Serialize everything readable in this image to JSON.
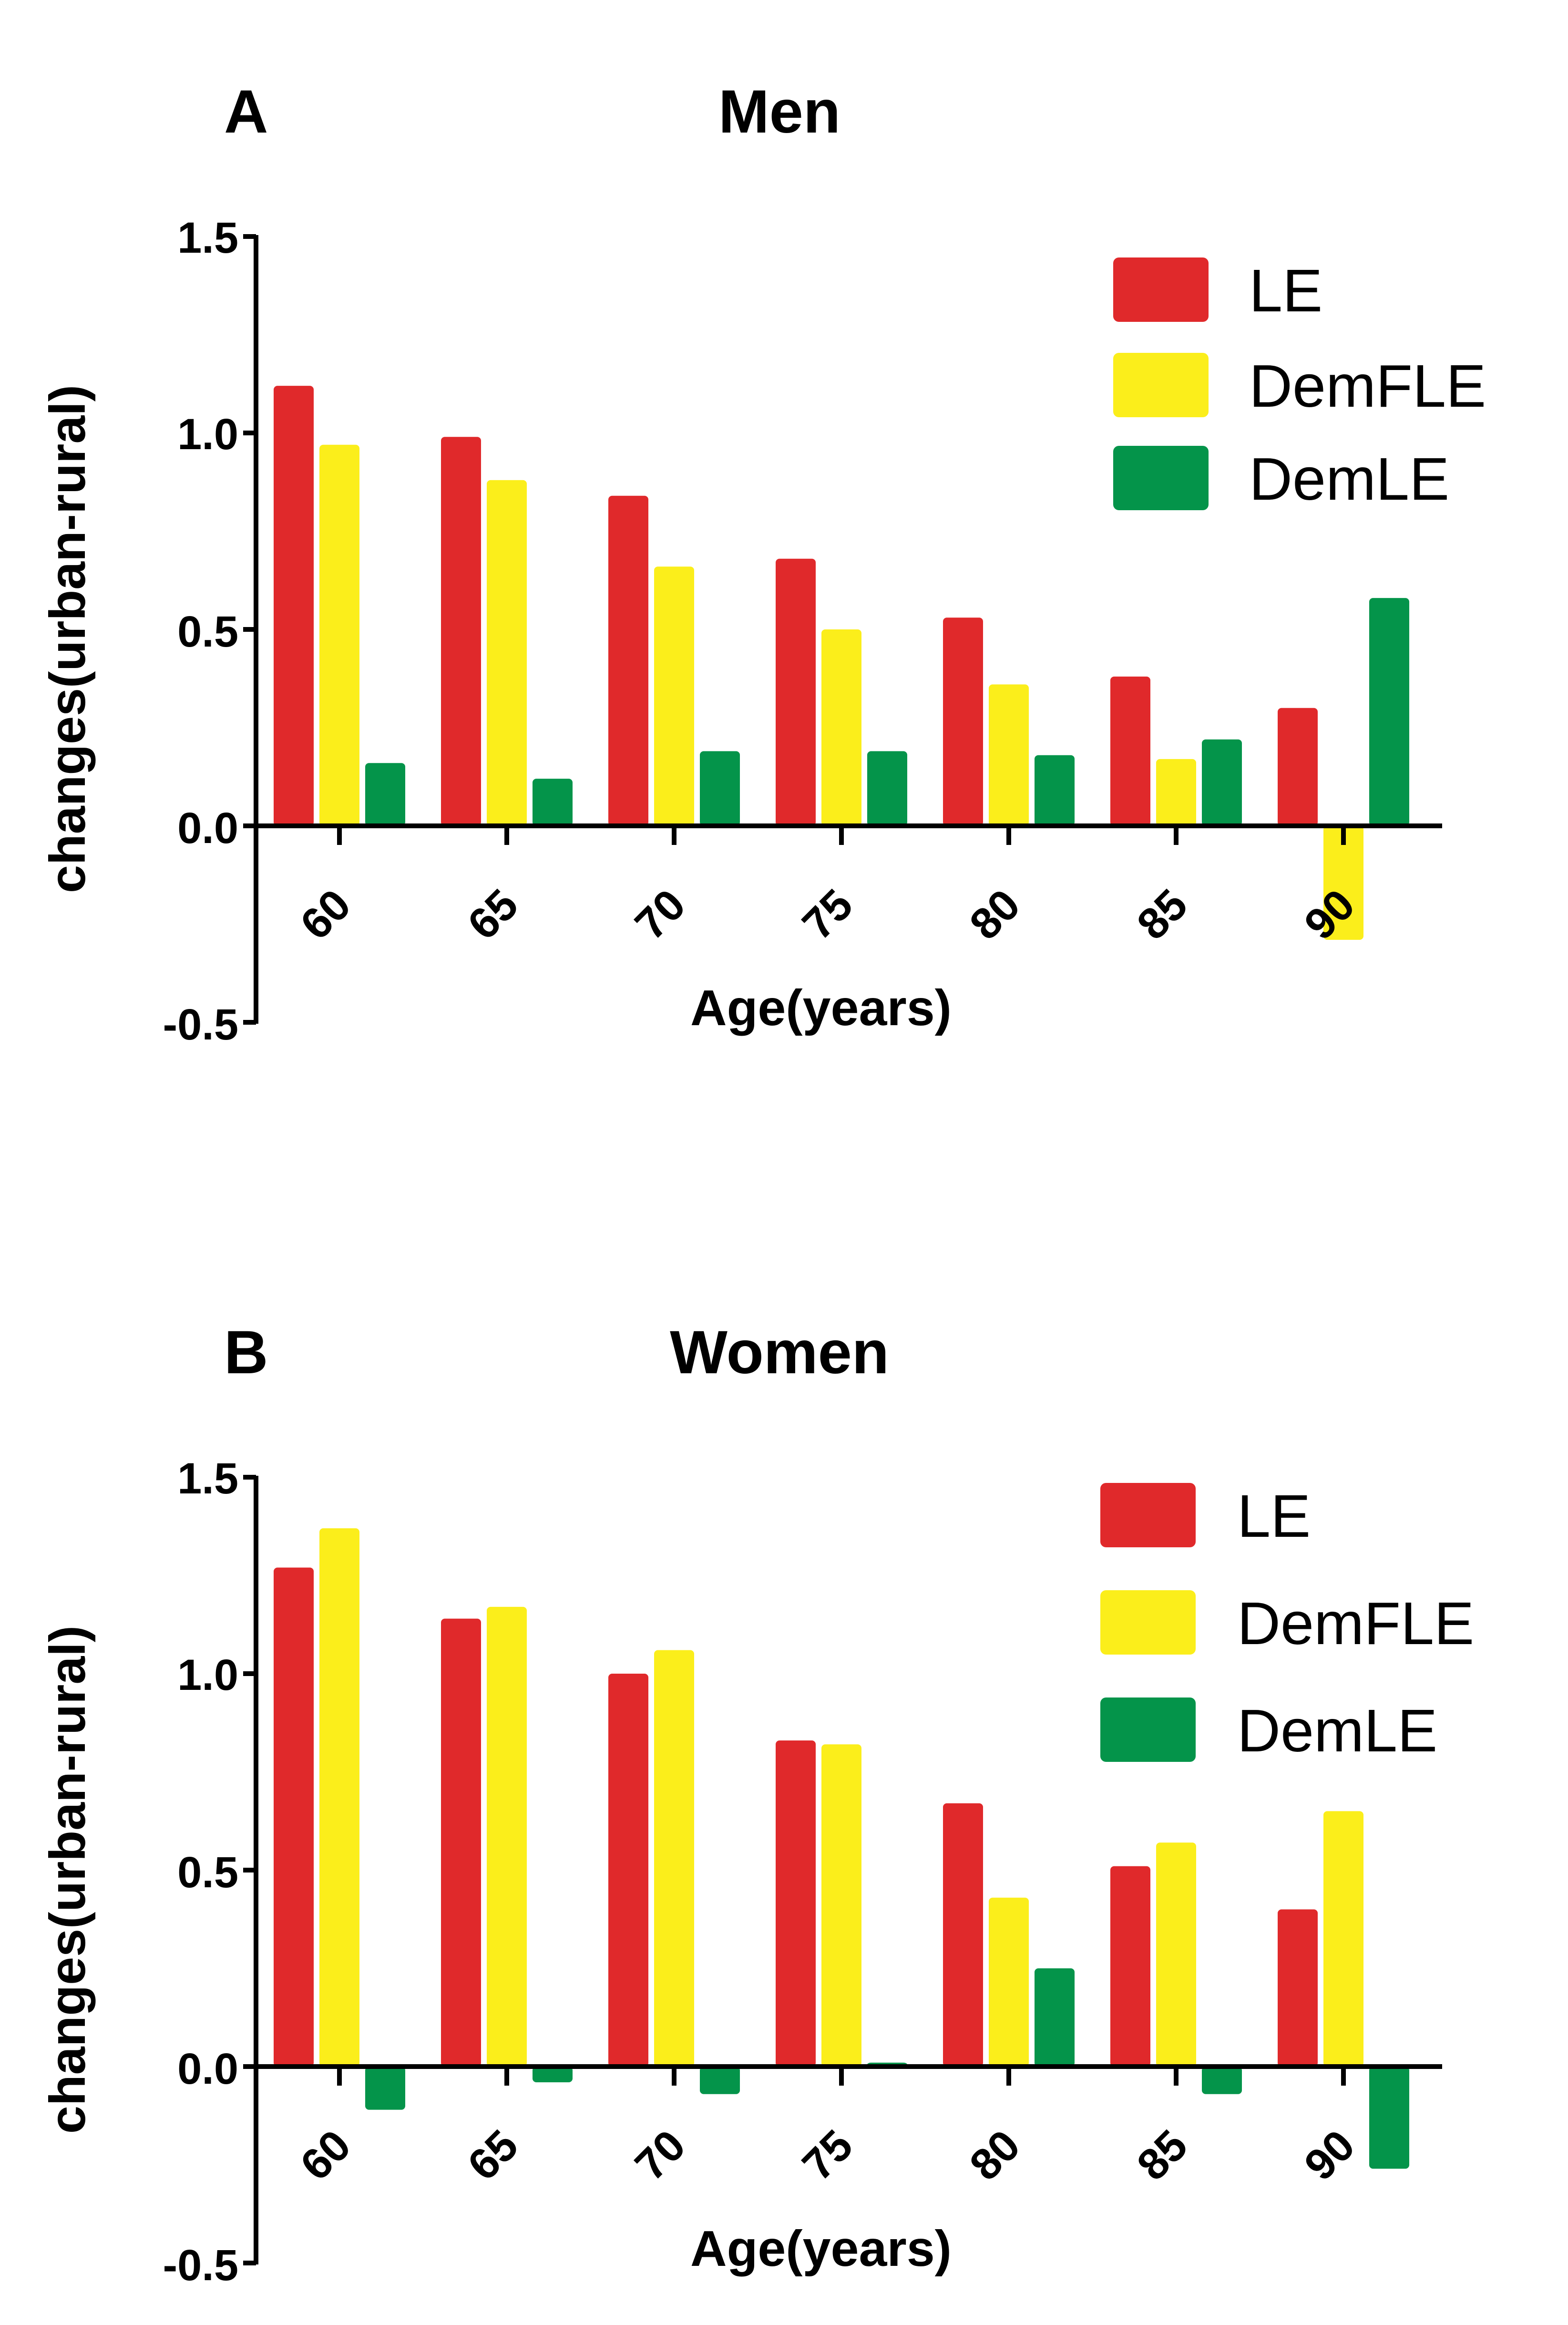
{
  "colors": {
    "LE": "#e0292b",
    "DemFLE": "#fbee1b",
    "DemLE": "#04944a",
    "axis": "#000000"
  },
  "chart_data": [
    {
      "type": "bar",
      "panel": "A",
      "title": "Men",
      "xlabel": "Age(years)",
      "ylabel": "changes(urban-rural)",
      "ylim": [
        -0.5,
        1.5
      ],
      "yticks": [
        "1.5",
        "1.0",
        "0.5",
        "0.0",
        "-0.5"
      ],
      "categories": [
        "60",
        "65",
        "70",
        "75",
        "80",
        "85",
        "90"
      ],
      "legend_position": "top-right",
      "series": [
        {
          "name": "LE",
          "values": [
            1.12,
            0.99,
            0.84,
            0.68,
            0.53,
            0.38,
            0.3
          ]
        },
        {
          "name": "DemFLE",
          "values": [
            0.97,
            0.88,
            0.66,
            0.5,
            0.36,
            0.17,
            -0.29
          ]
        },
        {
          "name": "DemLE",
          "values": [
            0.16,
            0.12,
            0.19,
            0.19,
            0.18,
            0.22,
            0.58
          ]
        }
      ]
    },
    {
      "type": "bar",
      "panel": "B",
      "title": "Women",
      "xlabel": "Age(years)",
      "ylabel": "changes(urban-rural)",
      "ylim": [
        -0.5,
        1.5
      ],
      "yticks": [
        "1.5",
        "1.0",
        "0.5",
        "0.0",
        "-0.5"
      ],
      "categories": [
        "60",
        "65",
        "70",
        "75",
        "80",
        "85",
        "90"
      ],
      "legend_position": "top-right",
      "series": [
        {
          "name": "LE",
          "values": [
            1.27,
            1.14,
            1.0,
            0.83,
            0.67,
            0.51,
            0.4
          ]
        },
        {
          "name": "DemFLE",
          "values": [
            1.37,
            1.17,
            1.06,
            0.82,
            0.43,
            0.57,
            0.65
          ]
        },
        {
          "name": "DemLE",
          "values": [
            -0.11,
            -0.04,
            -0.07,
            0.01,
            0.25,
            -0.07,
            -0.26
          ]
        }
      ]
    }
  ]
}
